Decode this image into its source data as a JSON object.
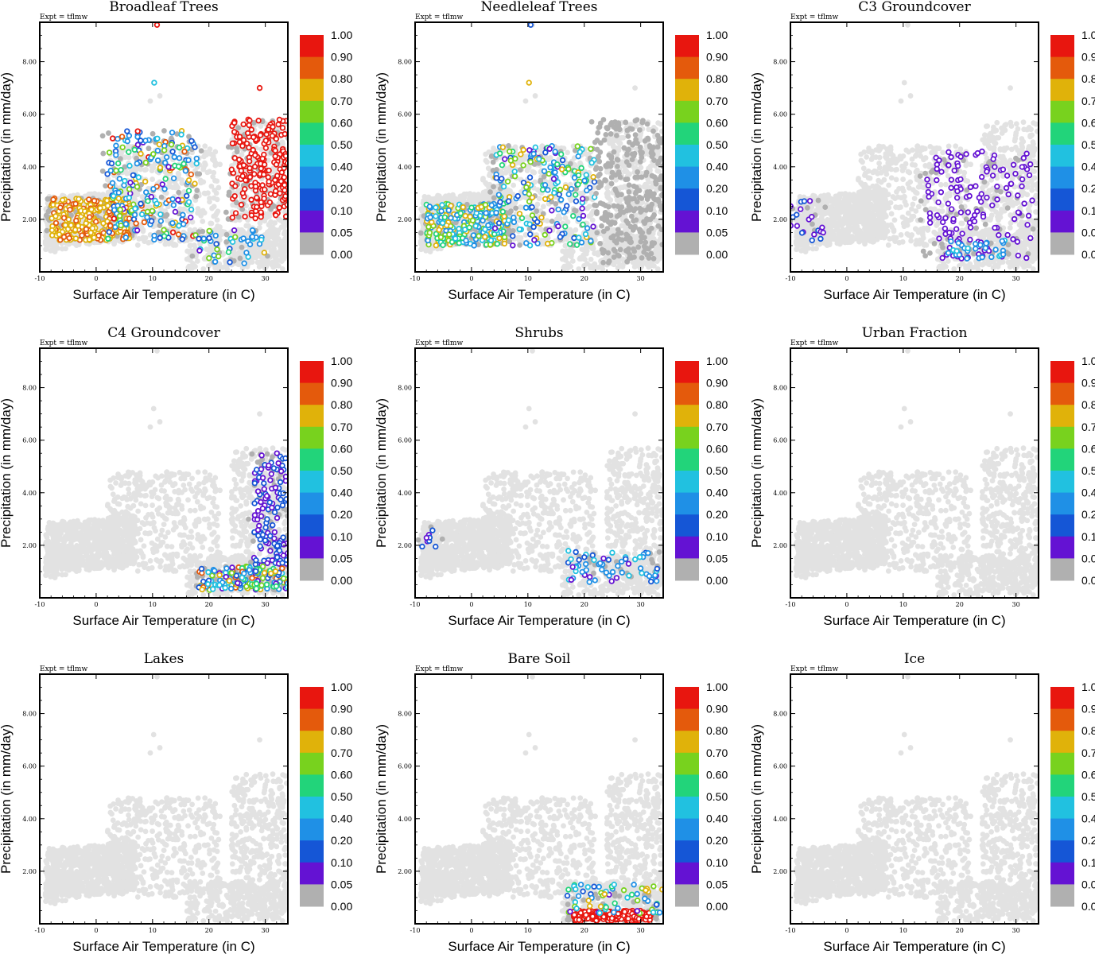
{
  "figure": {
    "experiment_label": "Expt = tflmw"
  },
  "chart_data": [
    {
      "type": "scatter",
      "key": "broadleaf",
      "title": "Broadleaf Trees",
      "xlabel": "Surface Air Temperature (in C)",
      "ylabel": "Precipitation (in mm/day)",
      "xlim": [
        -10,
        34
      ],
      "ylim": [
        0,
        9.5
      ],
      "xticks": [
        -10,
        0,
        10,
        20,
        30
      ],
      "yticks": [
        "2.00",
        "4.00",
        "6.00",
        "8.00"
      ],
      "color_by": "fraction",
      "clusters": [
        {
          "name": "cool-moist",
          "temp": [
            -8,
            6
          ],
          "precip": [
            1.2,
            2.8
          ],
          "fraction_range": [
            0.7,
            0.85
          ],
          "count": 260
        },
        {
          "name": "mid-band",
          "temp": [
            2,
            18
          ],
          "precip": [
            1.2,
            5.4
          ],
          "fraction_range": [
            0.05,
            0.95
          ],
          "count": 220
        },
        {
          "name": "tropical",
          "temp": [
            24,
            34
          ],
          "precip": [
            2.0,
            5.8
          ],
          "fraction_range": [
            0.9,
            1.0
          ],
          "count": 200
        },
        {
          "name": "dry-warm",
          "temp": [
            18,
            30
          ],
          "precip": [
            0.3,
            1.6
          ],
          "fraction_range": [
            0.05,
            0.75
          ],
          "count": 40
        }
      ],
      "outliers": [
        {
          "x": 10.8,
          "y": 9.4,
          "fraction": 0.9
        },
        {
          "x": 10.3,
          "y": 7.2,
          "fraction": 0.4
        },
        {
          "x": 29,
          "y": 7.0,
          "fraction": 0.9
        }
      ]
    },
    {
      "type": "scatter",
      "key": "needleleaf",
      "title": "Needleleaf Trees",
      "xlabel": "Surface Air Temperature (in C)",
      "ylabel": "Precipitation (in mm/day)",
      "xlim": [
        -10,
        34
      ],
      "ylim": [
        0,
        9.5
      ],
      "xticks": [
        -10,
        0,
        10,
        20,
        30
      ],
      "yticks": [
        "2.00",
        "4.00",
        "6.00",
        "8.00"
      ],
      "color_by": "fraction",
      "clusters": [
        {
          "name": "cool-moist",
          "temp": [
            -8,
            6
          ],
          "precip": [
            1.0,
            2.6
          ],
          "fraction_range": [
            0.3,
            0.8
          ],
          "count": 240
        },
        {
          "name": "mid-band",
          "temp": [
            4,
            22
          ],
          "precip": [
            1.0,
            4.8
          ],
          "fraction_range": [
            0.05,
            0.8
          ],
          "count": 200
        },
        {
          "name": "tropical-none",
          "temp": [
            22,
            34
          ],
          "precip": [
            0.3,
            5.8
          ],
          "fraction_range": [
            0.0,
            0.0
          ],
          "count": 220
        }
      ],
      "outliers": [
        {
          "x": 10.5,
          "y": 9.4,
          "fraction": 0.1
        },
        {
          "x": 10.2,
          "y": 7.2,
          "fraction": 0.7
        }
      ]
    },
    {
      "type": "scatter",
      "key": "c3",
      "title": "C3 Groundcover",
      "xlabel": "Surface Air Temperature (in C)",
      "ylabel": "Precipitation (in mm/day)",
      "xlim": [
        -10,
        34
      ],
      "ylim": [
        0,
        9.5
      ],
      "xticks": [
        -10,
        0,
        10,
        20,
        30
      ],
      "yticks": [
        "2.00",
        "4.00",
        "6.00",
        "8.00"
      ],
      "color_by": "fraction",
      "clusters": [
        {
          "name": "cold",
          "temp": [
            -10,
            -4
          ],
          "precip": [
            1.2,
            2.8
          ],
          "fraction_range": [
            0.05,
            0.12
          ],
          "count": 20
        },
        {
          "name": "warm-dry",
          "temp": [
            14,
            33
          ],
          "precip": [
            0.5,
            4.6
          ],
          "fraction_range": [
            0.05,
            0.08
          ],
          "count": 140
        },
        {
          "name": "warm-low",
          "temp": [
            18,
            28
          ],
          "precip": [
            0.5,
            1.2
          ],
          "fraction_range": [
            0.2,
            0.45
          ],
          "count": 30
        }
      ],
      "outliers": []
    },
    {
      "type": "scatter",
      "key": "c4",
      "title": "C4 Groundcover",
      "xlabel": "Surface Air Temperature (in C)",
      "ylabel": "Precipitation (in mm/day)",
      "xlim": [
        -10,
        34
      ],
      "ylim": [
        0,
        9.5
      ],
      "xticks": [
        -10,
        0,
        10,
        20,
        30
      ],
      "yticks": [
        "2.00",
        "4.00",
        "6.00",
        "8.00"
      ],
      "color_by": "fraction",
      "clusters": [
        {
          "name": "tropical-column",
          "temp": [
            28,
            34
          ],
          "precip": [
            1.2,
            5.6
          ],
          "fraction_range": [
            0.05,
            0.15
          ],
          "count": 130
        },
        {
          "name": "dry-base",
          "temp": [
            18,
            34
          ],
          "precip": [
            0.3,
            1.2
          ],
          "fraction_range": [
            0.05,
            0.9
          ],
          "count": 160
        }
      ],
      "outliers": []
    },
    {
      "type": "scatter",
      "key": "shrubs",
      "title": "Shrubs",
      "xlabel": "Surface Air Temperature (in C)",
      "ylabel": "Precipitation (in mm/day)",
      "xlim": [
        -10,
        34
      ],
      "ylim": [
        0,
        9.5
      ],
      "xticks": [
        -10,
        0,
        10,
        20,
        30
      ],
      "yticks": [
        "2.00",
        "4.00",
        "6.00",
        "8.00"
      ],
      "color_by": "fraction",
      "clusters": [
        {
          "name": "cold",
          "temp": [
            -9,
            -6
          ],
          "precip": [
            1.8,
            2.8
          ],
          "fraction_range": [
            0.05,
            0.15
          ],
          "count": 8
        },
        {
          "name": "warm-dry",
          "temp": [
            17,
            33
          ],
          "precip": [
            0.6,
            1.8
          ],
          "fraction_range": [
            0.05,
            0.5
          ],
          "count": 60
        }
      ],
      "outliers": []
    },
    {
      "type": "scatter",
      "key": "urban",
      "title": "Urban Fraction",
      "xlabel": "Surface Air Temperature (in C)",
      "ylabel": "Precipitation (in mm/day)",
      "xlim": [
        -10,
        34
      ],
      "ylim": [
        0,
        9.5
      ],
      "xticks": [
        -10,
        0,
        10,
        20,
        30
      ],
      "yticks": [
        "2.00",
        "4.00",
        "6.00",
        "8.00"
      ],
      "color_by": "fraction",
      "clusters": [],
      "outliers": []
    },
    {
      "type": "scatter",
      "key": "lakes",
      "title": "Lakes",
      "xlabel": "Surface Air Temperature (in C)",
      "ylabel": "Precipitation (in mm/day)",
      "xlim": [
        -10,
        34
      ],
      "ylim": [
        0,
        9.5
      ],
      "xticks": [
        -10,
        0,
        10,
        20,
        30
      ],
      "yticks": [
        "2.00",
        "4.00",
        "6.00",
        "8.00"
      ],
      "color_by": "fraction",
      "clusters": [],
      "outliers": []
    },
    {
      "type": "scatter",
      "key": "baresoil",
      "title": "Bare Soil",
      "xlabel": "Surface Air Temperature (in C)",
      "ylabel": "Precipitation (in mm/day)",
      "xlim": [
        -10,
        34
      ],
      "ylim": [
        0,
        9.5
      ],
      "xticks": [
        -10,
        0,
        10,
        20,
        30
      ],
      "yticks": [
        "2.00",
        "4.00",
        "6.00",
        "8.00"
      ],
      "color_by": "fraction",
      "clusters": [
        {
          "name": "desert",
          "temp": [
            18,
            32
          ],
          "precip": [
            0.1,
            0.5
          ],
          "fraction_range": [
            0.9,
            1.0
          ],
          "count": 160
        },
        {
          "name": "desert-edge",
          "temp": [
            17,
            34
          ],
          "precip": [
            0.4,
            1.5
          ],
          "fraction_range": [
            0.05,
            0.8
          ],
          "count": 60
        }
      ],
      "outliers": []
    },
    {
      "type": "scatter",
      "key": "ice",
      "title": "Ice",
      "xlabel": "Surface Air Temperature (in C)",
      "ylabel": "Precipitation (in mm/day)",
      "xlim": [
        -10,
        34
      ],
      "ylim": [
        0,
        9.5
      ],
      "xticks": [
        -10,
        0,
        10,
        20,
        30
      ],
      "yticks": [
        "2.00",
        "4.00",
        "6.00",
        "8.00"
      ],
      "color_by": "fraction",
      "clusters": [],
      "outliers": []
    }
  ],
  "colorbar": {
    "labels": [
      "1.00",
      "0.90",
      "0.80",
      "0.70",
      "0.60",
      "0.50",
      "0.40",
      "0.20",
      "0.10",
      "0.05",
      "0.00"
    ],
    "colors": [
      "#e8160f",
      "#e45a0c",
      "#e0b20a",
      "#78d21e",
      "#22d47a",
      "#21c1e0",
      "#1f90e6",
      "#1556d6",
      "#6412d3",
      "#b0b0b0"
    ],
    "zero_color": "#b0b0b0",
    "background_point_color": "#e2e2e2"
  }
}
